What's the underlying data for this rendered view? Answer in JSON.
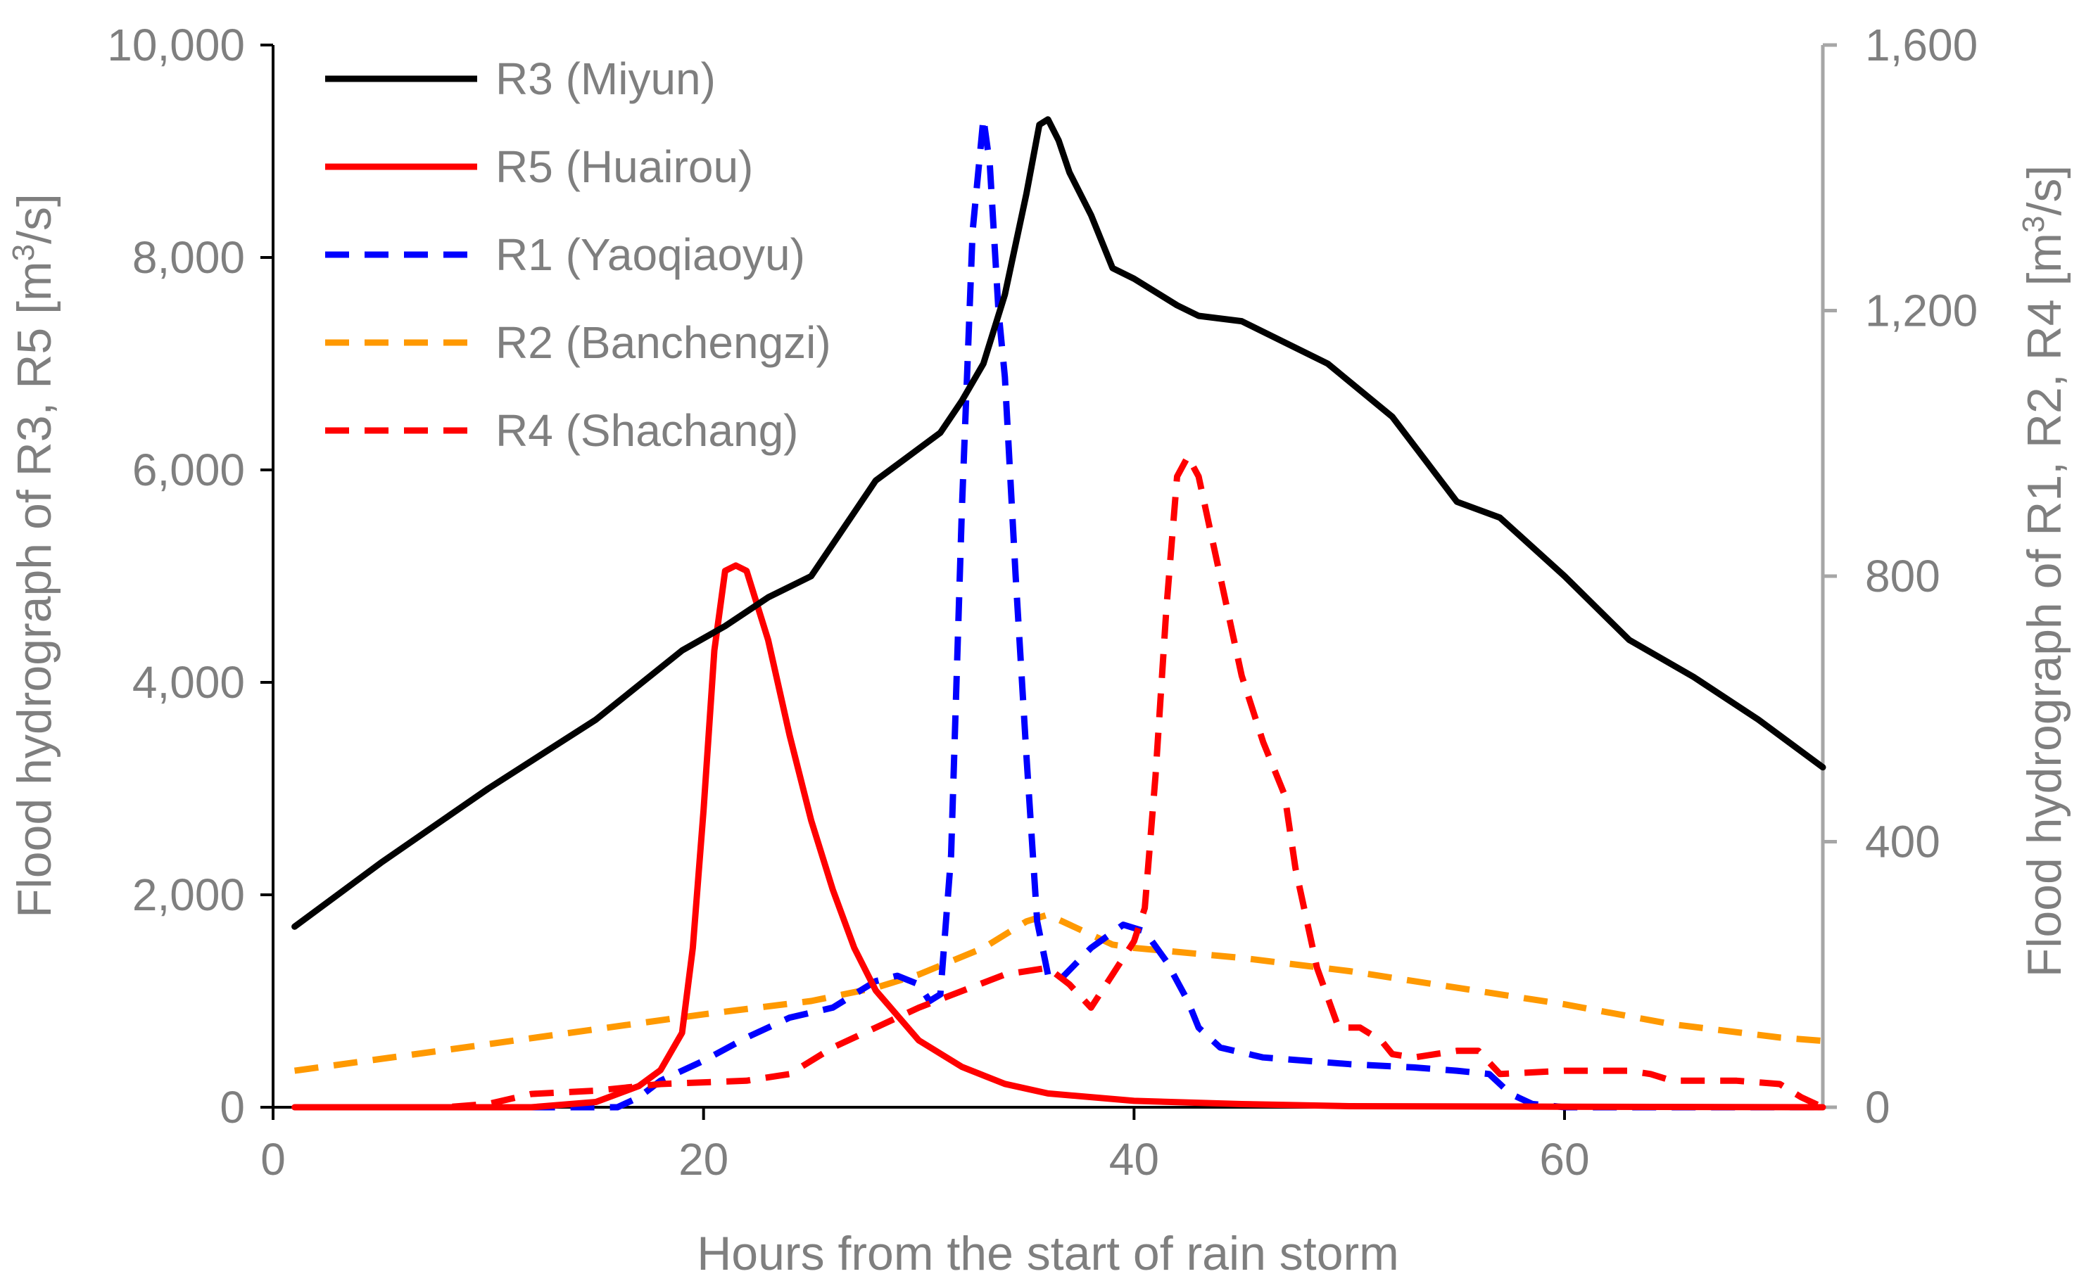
{
  "chart_data": {
    "type": "line",
    "title": "",
    "xlabel": "Hours from the start of rain storm",
    "ylabel_left": "Flood hydrograph of R3, R5 [m³/s]",
    "ylabel_right": "Flood hydrograph of R1, R2, R4 [m³/s]",
    "xlim": [
      0,
      72
    ],
    "ylim_left": [
      0,
      10000
    ],
    "ylim_right": [
      0,
      1600
    ],
    "x_ticks": [
      0,
      20,
      40,
      60
    ],
    "x_tick_labels": [
      "0",
      "20",
      "40",
      "60"
    ],
    "y_left_ticks": [
      0,
      2000,
      4000,
      6000,
      8000,
      10000
    ],
    "y_left_tick_labels": [
      "0",
      "2,000",
      "4,000",
      "6,000",
      "8,000",
      "10,000"
    ],
    "y_right_ticks": [
      0,
      400,
      800,
      1200,
      1600
    ],
    "y_right_tick_labels": [
      "0",
      "400",
      "800",
      "1,200",
      "1,600"
    ],
    "grid": false,
    "legend_position": "top-left",
    "colors": {
      "axis_left": "#000000",
      "axis_right": "#a6a6a6",
      "text": "#7f7f7f"
    },
    "series": [
      {
        "id": "r3",
        "name": "R3 (Miyun)",
        "axis": "left",
        "color": "#000000",
        "dash": "solid",
        "points": [
          [
            1,
            1700
          ],
          [
            5,
            2300
          ],
          [
            10,
            3000
          ],
          [
            15,
            3650
          ],
          [
            19,
            4300
          ],
          [
            21,
            4530
          ],
          [
            23,
            4800
          ],
          [
            25,
            5000
          ],
          [
            27,
            5600
          ],
          [
            28,
            5900
          ],
          [
            29,
            6050
          ],
          [
            31,
            6350
          ],
          [
            32,
            6650
          ],
          [
            33,
            7000
          ],
          [
            34,
            7650
          ],
          [
            35,
            8600
          ],
          [
            35.6,
            9250
          ],
          [
            36,
            9300
          ],
          [
            36.5,
            9100
          ],
          [
            37,
            8800
          ],
          [
            38,
            8400
          ],
          [
            39,
            7900
          ],
          [
            40,
            7800
          ],
          [
            42,
            7550
          ],
          [
            43,
            7450
          ],
          [
            45,
            7400
          ],
          [
            49,
            7000
          ],
          [
            52,
            6500
          ],
          [
            55,
            5700
          ],
          [
            57,
            5550
          ],
          [
            60,
            5000
          ],
          [
            63,
            4400
          ],
          [
            66,
            4050
          ],
          [
            69,
            3650
          ],
          [
            72,
            3200
          ]
        ]
      },
      {
        "id": "r5",
        "name": "R5 (Huairou)",
        "axis": "left",
        "color": "#ff0000",
        "dash": "solid",
        "points": [
          [
            1,
            0
          ],
          [
            12,
            0
          ],
          [
            15,
            50
          ],
          [
            17,
            200
          ],
          [
            18,
            350
          ],
          [
            19,
            700
          ],
          [
            19.5,
            1500
          ],
          [
            20,
            2800
          ],
          [
            20.5,
            4300
          ],
          [
            21,
            5050
          ],
          [
            21.5,
            5100
          ],
          [
            22,
            5050
          ],
          [
            23,
            4400
          ],
          [
            24,
            3500
          ],
          [
            25,
            2700
          ],
          [
            26,
            2050
          ],
          [
            27,
            1500
          ],
          [
            28,
            1100
          ],
          [
            30,
            630
          ],
          [
            32,
            380
          ],
          [
            34,
            220
          ],
          [
            36,
            130
          ],
          [
            40,
            60
          ],
          [
            45,
            30
          ],
          [
            50,
            10
          ],
          [
            60,
            5
          ],
          [
            72,
            0
          ]
        ]
      },
      {
        "id": "r1",
        "name": "R1 (Yaoqiaoyu)",
        "axis": "right",
        "color": "#0000ff",
        "dash": "dashed",
        "points": [
          [
            1,
            0
          ],
          [
            16,
            0
          ],
          [
            17,
            15
          ],
          [
            18,
            40
          ],
          [
            20,
            70
          ],
          [
            22,
            105
          ],
          [
            24,
            135
          ],
          [
            26,
            150
          ],
          [
            28,
            190
          ],
          [
            29,
            198
          ],
          [
            30,
            185
          ],
          [
            30.5,
            160
          ],
          [
            31,
            170
          ],
          [
            31.5,
            380
          ],
          [
            32,
            900
          ],
          [
            32.5,
            1320
          ],
          [
            33,
            1490
          ],
          [
            33.3,
            1420
          ],
          [
            33.7,
            1200
          ],
          [
            34,
            1100
          ],
          [
            34.5,
            800
          ],
          [
            35,
            530
          ],
          [
            35.5,
            280
          ],
          [
            36,
            200
          ],
          [
            36.5,
            190
          ],
          [
            38,
            240
          ],
          [
            39.5,
            275
          ],
          [
            40.5,
            265
          ],
          [
            41.5,
            220
          ],
          [
            42.5,
            160
          ],
          [
            43,
            120
          ],
          [
            44,
            90
          ],
          [
            46,
            75
          ],
          [
            50,
            65
          ],
          [
            53,
            60
          ],
          [
            55,
            55
          ],
          [
            56.5,
            50
          ],
          [
            57.5,
            20
          ],
          [
            58.5,
            5
          ],
          [
            60,
            0
          ],
          [
            72,
            0
          ]
        ]
      },
      {
        "id": "r2",
        "name": "R2 (Banchengzi)",
        "axis": "right",
        "color": "#ff9900",
        "dash": "dashed",
        "points": [
          [
            1,
            55
          ],
          [
            10,
            95
          ],
          [
            20,
            140
          ],
          [
            25,
            160
          ],
          [
            28,
            180
          ],
          [
            30,
            200
          ],
          [
            33,
            240
          ],
          [
            35,
            280
          ],
          [
            36,
            290
          ],
          [
            37,
            275
          ],
          [
            39,
            245
          ],
          [
            40,
            240
          ],
          [
            45,
            225
          ],
          [
            50,
            205
          ],
          [
            55,
            180
          ],
          [
            60,
            155
          ],
          [
            65,
            125
          ],
          [
            70,
            105
          ],
          [
            72,
            100
          ]
        ]
      },
      {
        "id": "r4",
        "name": "R4 (Shachang)",
        "axis": "right",
        "color": "#ff0000",
        "dash": "dashed",
        "points": [
          [
            1,
            0
          ],
          [
            8,
            0
          ],
          [
            10,
            5
          ],
          [
            12,
            20
          ],
          [
            15,
            25
          ],
          [
            18,
            35
          ],
          [
            22,
            40
          ],
          [
            24,
            50
          ],
          [
            26,
            90
          ],
          [
            28,
            120
          ],
          [
            30,
            150
          ],
          [
            32,
            175
          ],
          [
            34,
            200
          ],
          [
            36,
            210
          ],
          [
            37,
            185
          ],
          [
            38,
            150
          ],
          [
            39,
            200
          ],
          [
            40,
            250
          ],
          [
            40.5,
            300
          ],
          [
            41,
            500
          ],
          [
            41.5,
            750
          ],
          [
            42,
            950
          ],
          [
            42.5,
            980
          ],
          [
            43,
            950
          ],
          [
            44,
            800
          ],
          [
            45,
            650
          ],
          [
            46,
            550
          ],
          [
            47,
            470
          ],
          [
            47.5,
            360
          ],
          [
            48.5,
            210
          ],
          [
            49.5,
            120
          ],
          [
            50.5,
            120
          ],
          [
            51.5,
            100
          ],
          [
            52,
            80
          ],
          [
            53,
            75
          ],
          [
            54,
            80
          ],
          [
            55,
            85
          ],
          [
            56,
            85
          ],
          [
            57,
            50
          ],
          [
            60,
            55
          ],
          [
            63,
            55
          ],
          [
            64,
            50
          ],
          [
            65,
            40
          ],
          [
            68,
            40
          ],
          [
            70,
            35
          ],
          [
            71,
            15
          ],
          [
            72,
            0
          ]
        ]
      }
    ]
  }
}
